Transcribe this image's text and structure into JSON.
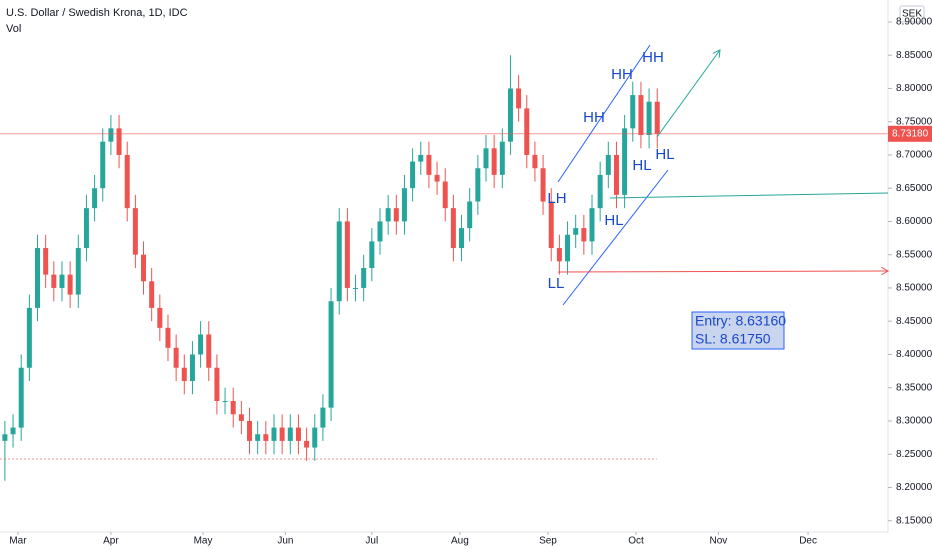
{
  "chart_data": {
    "type": "candlestick",
    "title": "U.S. Dollar / Swedish Krona, 1D, IDC",
    "subtitle": "Vol",
    "currency": "SEK",
    "up_color": "#26a69a",
    "down_color": "#ef5350",
    "open": [
      8.27,
      8.28,
      8.29,
      8.38,
      8.47,
      8.56,
      8.52,
      8.5,
      8.52,
      8.49,
      8.56,
      8.62,
      8.65,
      8.72,
      8.74,
      8.7,
      8.62,
      8.55,
      8.51,
      8.47,
      8.44,
      8.41,
      8.38,
      8.36,
      8.4,
      8.43,
      8.38,
      8.33,
      8.33,
      8.31,
      8.3,
      8.27,
      8.28,
      8.27,
      8.29,
      8.27,
      8.29,
      8.27,
      8.26,
      8.29,
      8.32,
      8.48,
      8.6,
      8.5,
      8.5,
      8.53,
      8.57,
      8.6,
      8.62,
      8.6,
      8.65,
      8.69,
      8.7,
      8.67,
      8.66,
      8.62,
      8.56,
      8.59,
      8.63,
      8.68,
      8.71,
      8.67,
      8.72,
      8.8,
      8.77,
      8.7,
      8.68,
      8.63,
      8.56,
      8.54,
      8.58,
      8.59,
      8.57,
      8.62,
      8.67,
      8.7,
      8.64,
      8.74,
      8.79,
      8.73,
      8.78
    ],
    "high": [
      8.3,
      8.31,
      8.4,
      8.49,
      8.58,
      8.58,
      8.54,
      8.54,
      8.54,
      8.58,
      8.64,
      8.67,
      8.74,
      8.76,
      8.76,
      8.72,
      8.64,
      8.57,
      8.53,
      8.49,
      8.46,
      8.43,
      8.4,
      8.42,
      8.45,
      8.45,
      8.4,
      8.35,
      8.35,
      8.33,
      8.32,
      8.3,
      8.3,
      8.31,
      8.31,
      8.31,
      8.31,
      8.29,
      8.31,
      8.34,
      8.5,
      8.62,
      8.62,
      8.52,
      8.55,
      8.59,
      8.62,
      8.64,
      8.64,
      8.67,
      8.71,
      8.72,
      8.72,
      8.69,
      8.68,
      8.64,
      8.61,
      8.65,
      8.7,
      8.73,
      8.73,
      8.74,
      8.85,
      8.82,
      8.79,
      8.72,
      8.7,
      8.65,
      8.58,
      8.6,
      8.61,
      8.61,
      8.64,
      8.69,
      8.72,
      8.72,
      8.76,
      8.81,
      8.81,
      8.8,
      8.8
    ],
    "low": [
      8.21,
      8.26,
      8.27,
      8.36,
      8.45,
      8.5,
      8.48,
      8.48,
      8.47,
      8.47,
      8.54,
      8.6,
      8.63,
      8.7,
      8.68,
      8.6,
      8.53,
      8.49,
      8.45,
      8.42,
      8.39,
      8.36,
      8.34,
      8.34,
      8.38,
      8.36,
      8.31,
      8.31,
      8.29,
      8.28,
      8.25,
      8.25,
      8.25,
      8.25,
      8.25,
      8.25,
      8.25,
      8.24,
      8.24,
      8.27,
      8.3,
      8.46,
      8.48,
      8.48,
      8.48,
      8.51,
      8.55,
      8.58,
      8.58,
      8.58,
      8.63,
      8.67,
      8.65,
      8.64,
      8.6,
      8.54,
      8.54,
      8.57,
      8.61,
      8.66,
      8.65,
      8.65,
      8.7,
      8.75,
      8.68,
      8.66,
      8.61,
      8.54,
      8.52,
      8.52,
      8.56,
      8.55,
      8.55,
      8.6,
      8.65,
      8.62,
      8.62,
      8.72,
      8.71,
      8.71,
      8.71
    ],
    "close": [
      8.28,
      8.29,
      8.38,
      8.47,
      8.56,
      8.52,
      8.5,
      8.52,
      8.49,
      8.56,
      8.62,
      8.65,
      8.72,
      8.74,
      8.7,
      8.62,
      8.55,
      8.51,
      8.47,
      8.44,
      8.41,
      8.38,
      8.36,
      8.4,
      8.43,
      8.38,
      8.33,
      8.33,
      8.31,
      8.3,
      8.27,
      8.28,
      8.27,
      8.29,
      8.27,
      8.29,
      8.27,
      8.26,
      8.29,
      8.32,
      8.48,
      8.6,
      8.5,
      8.5,
      8.53,
      8.57,
      8.6,
      8.62,
      8.6,
      8.65,
      8.69,
      8.7,
      8.67,
      8.66,
      8.62,
      8.56,
      8.59,
      8.63,
      8.68,
      8.71,
      8.67,
      8.72,
      8.8,
      8.77,
      8.7,
      8.68,
      8.63,
      8.56,
      8.54,
      8.58,
      8.59,
      8.57,
      8.62,
      8.67,
      8.7,
      8.64,
      8.74,
      8.79,
      8.73,
      8.78,
      8.7318
    ],
    "last_price_label": "8.73180",
    "xlim": [
      -0.6,
      108.3
    ],
    "xticks": [
      {
        "value": 1.6,
        "label": "Mar"
      },
      {
        "value": 13,
        "label": "Apr"
      },
      {
        "value": 24.3,
        "label": "May"
      },
      {
        "value": 34.4,
        "label": "Jun"
      },
      {
        "value": 45,
        "label": "Jul"
      },
      {
        "value": 55.8,
        "label": "Aug"
      },
      {
        "value": 66.6,
        "label": "Sep"
      },
      {
        "value": 77.4,
        "label": "Oct"
      },
      {
        "value": 87.5,
        "label": "Nov"
      },
      {
        "value": 98.5,
        "label": "Dec"
      }
    ],
    "ylim": [
      8.133,
      8.933
    ],
    "yticks": [
      {
        "value": 8.15,
        "label": "8.15000"
      },
      {
        "value": 8.2,
        "label": "8.20000"
      },
      {
        "value": 8.25,
        "label": "8.25000"
      },
      {
        "value": 8.3,
        "label": "8.30000"
      },
      {
        "value": 8.35,
        "label": "8.35000"
      },
      {
        "value": 8.4,
        "label": "8.40000"
      },
      {
        "value": 8.45,
        "label": "8.45000"
      },
      {
        "value": 8.5,
        "label": "8.50000"
      },
      {
        "value": 8.55,
        "label": "8.55000"
      },
      {
        "value": 8.6,
        "label": "8.60000"
      },
      {
        "value": 8.65,
        "label": "8.65000"
      },
      {
        "value": 8.7,
        "label": "8.70000"
      },
      {
        "value": 8.75,
        "label": "8.75000"
      },
      {
        "value": 8.8,
        "label": "8.80000"
      },
      {
        "value": 8.85,
        "label": "8.85000"
      },
      {
        "value": 8.9,
        "label": "8.90000"
      }
    ],
    "annotations": [
      "HH",
      "HH",
      "HH",
      "LH",
      "HL",
      "HL",
      "HL",
      "LL"
    ],
    "entry_note": [
      "Entry: 8.63160",
      "SL: 8.61750"
    ]
  }
}
